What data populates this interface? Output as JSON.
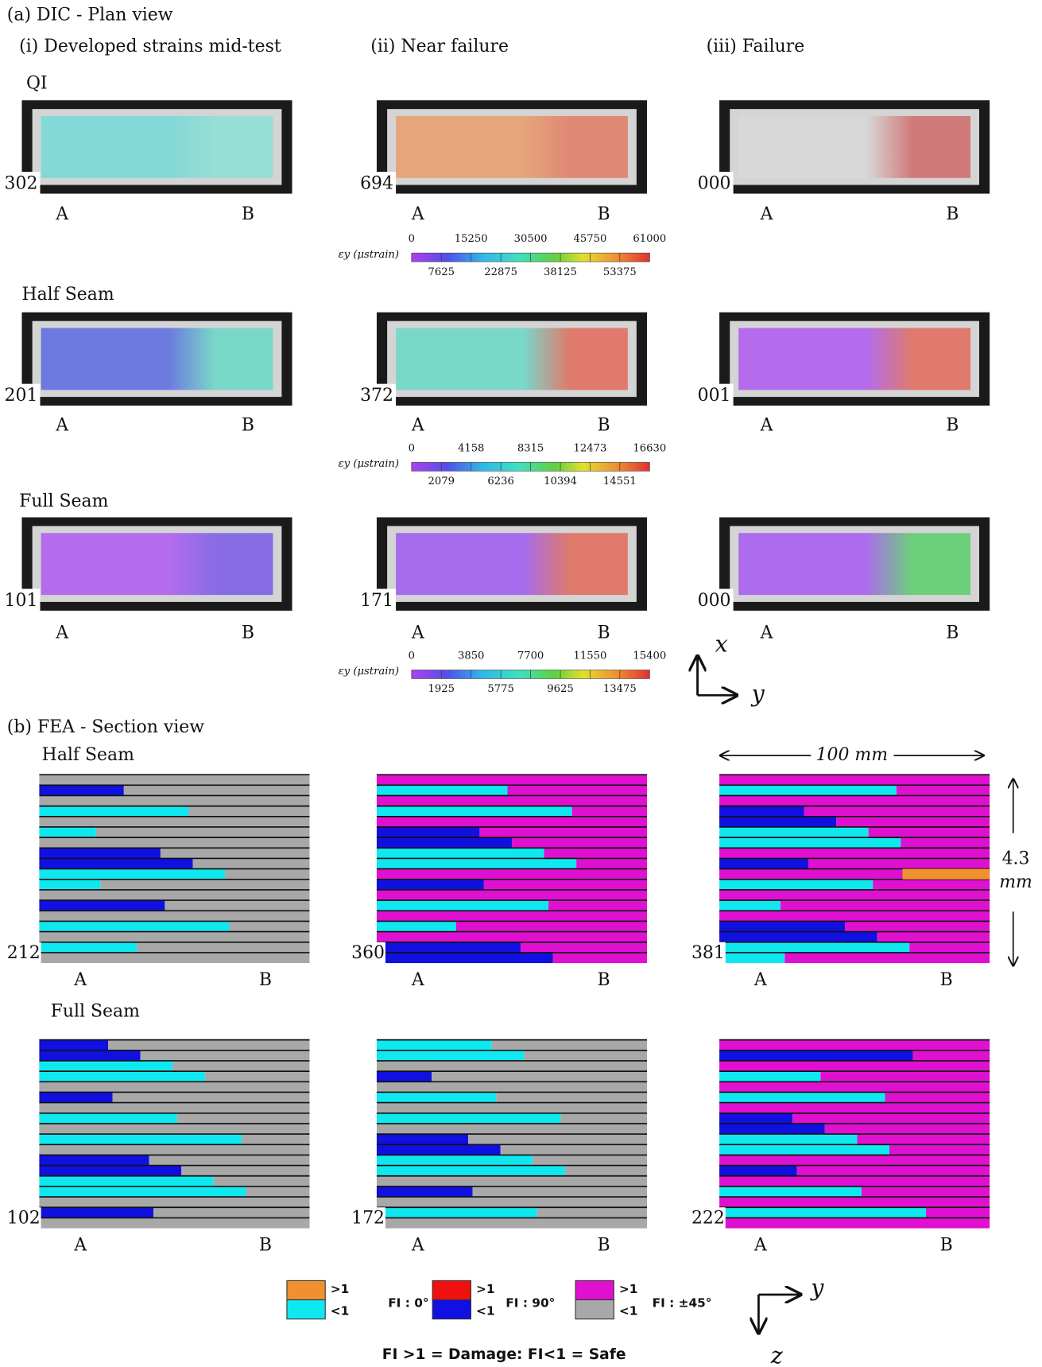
{
  "section_a": {
    "title": "(a) DIC - Plan view",
    "columns": [
      "(i) Developed strains mid-test",
      "(ii) Near failure",
      "(iii) Failure"
    ],
    "ends": [
      "A",
      "B"
    ],
    "rows": [
      {
        "label": "QI",
        "panel_ids": [
          "302",
          "694",
          "000"
        ]
      },
      {
        "label": "Half Seam",
        "panel_ids": [
          "201",
          "372",
          "001"
        ]
      },
      {
        "label": "Full Seam",
        "panel_ids": [
          "101",
          "171",
          "000"
        ]
      }
    ],
    "colorbars": [
      {
        "label": "εy (μstrain)",
        "top_ticks": [
          0,
          15250,
          30500,
          45750,
          61000
        ],
        "bottom_ticks": [
          7625,
          22875,
          38125,
          53375
        ]
      },
      {
        "label": "εy (μstrain)",
        "top_ticks": [
          0,
          4158,
          8315,
          12473,
          16630
        ],
        "bottom_ticks": [
          2079,
          6236,
          10394,
          14551
        ]
      },
      {
        "label": "εy (μstrain)",
        "top_ticks": [
          0,
          3850,
          7700,
          11550,
          15400
        ],
        "bottom_ticks": [
          1925,
          5775,
          9625,
          13475
        ]
      }
    ],
    "axes": [
      "x",
      "y"
    ]
  },
  "section_b": {
    "title": "(b) FEA - Section view",
    "rows": [
      {
        "label": "Half Seam",
        "panel_ids": [
          "212",
          "360",
          "381"
        ]
      },
      {
        "label": "Full Seam",
        "panel_ids": [
          "102",
          "172",
          "222"
        ]
      }
    ],
    "dimensions": {
      "width": "100 mm",
      "height": [
        "4.3",
        "mm"
      ]
    },
    "legend": {
      "items": [
        {
          "high": ">1",
          "low": "<1",
          "label": "FI : 0°"
        },
        {
          "high": ">1",
          "low": "<1",
          "label": "FI : 90°"
        },
        {
          "high": ">1",
          "low": "<1",
          "label": "FI : ±45°"
        }
      ],
      "note": "FI >1 = Damage: FI<1 = Safe"
    },
    "axes": [
      "y",
      "z"
    ]
  }
}
